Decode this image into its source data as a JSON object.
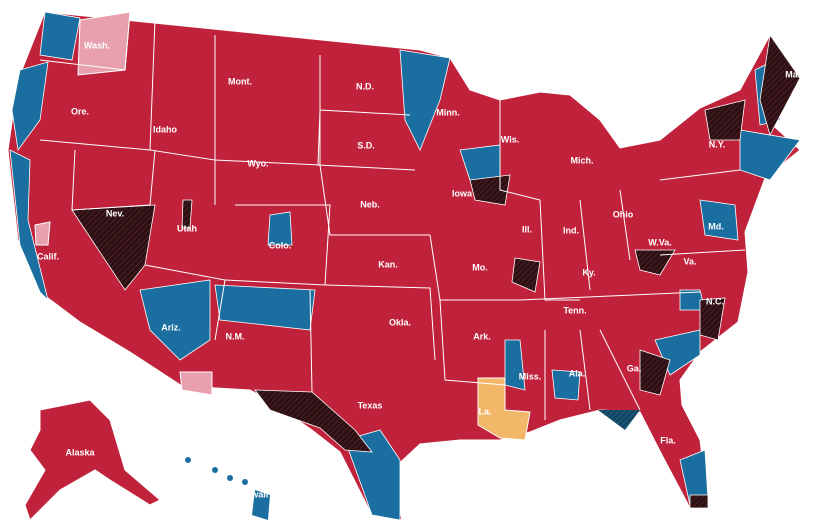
{
  "labels": [
    "Wash.",
    "Ore.",
    "Calif.",
    "Nev.",
    "Idaho",
    "Mont.",
    "Wyo.",
    "Utah",
    "Colo.",
    "Ariz.",
    "N.M.",
    "N.D.",
    "S.D.",
    "Neb.",
    "Kan.",
    "Okla.",
    "Texas",
    "Minn.",
    "Iowa",
    "Mo.",
    "Ark.",
    "La.",
    "Wis.",
    "Ill.",
    "Mich.",
    "Ind.",
    "Ohio",
    "Ky.",
    "Tenn.",
    "Miss.",
    "Ala.",
    "Ga.",
    "Fla.",
    "W.Va.",
    "Va.",
    "N.C.",
    "Md.",
    "N.Y.",
    "Maine",
    "Alaska",
    "Hawaii"
  ]
}
